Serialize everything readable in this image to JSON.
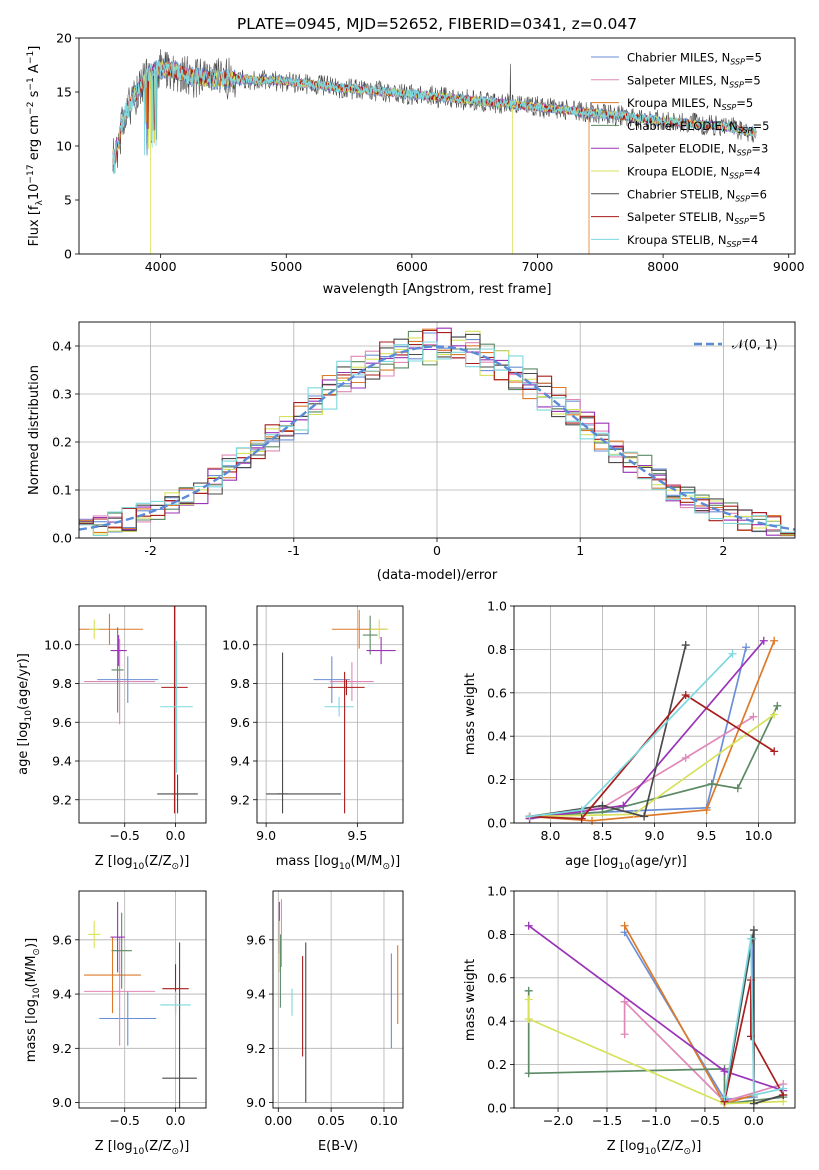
{
  "colors": {
    "c0": "#6a8fd6",
    "c1": "#e088b8",
    "c2": "#dd7a2a",
    "c3": "#5b8a64",
    "c4": "#9a33b8",
    "c5": "#d7e25c",
    "c6": "#4a4a4a",
    "c7": "#a81d1d",
    "c8": "#7cd8de",
    "normal": "#5b8ad6"
  },
  "models": [
    {
      "name": "Chabrier MILES",
      "nssp": "5",
      "key": "c0"
    },
    {
      "name": "Salpeter MILES",
      "nssp": "5",
      "key": "c1"
    },
    {
      "name": "Kroupa MILES",
      "nssp": "5",
      "key": "c2"
    },
    {
      "name": "Chabrier ELODIE",
      "nssp": "5",
      "key": "c3"
    },
    {
      "name": "Salpeter ELODIE",
      "nssp": "3",
      "key": "c4"
    },
    {
      "name": "Kroupa ELODIE",
      "nssp": "4",
      "key": "c5"
    },
    {
      "name": "Chabrier STELIB",
      "nssp": "6",
      "key": "c6"
    },
    {
      "name": "Salpeter STELIB",
      "nssp": "5",
      "key": "c7"
    },
    {
      "name": "Kroupa STELIB",
      "nssp": "4",
      "key": "c8"
    }
  ],
  "chart_data": [
    {
      "id": "spectrum",
      "type": "line",
      "title": "PLATE=0945, MJD=52652, FIBERID=0341, z=0.047",
      "xlabel": "wavelength [Angstrom, rest frame]",
      "ylabel_parts": [
        "Flux [f",
        "λ",
        "10",
        "−17",
        " erg cm",
        "−2",
        " s",
        "−1",
        " A",
        "−1",
        "]"
      ],
      "xlim": [
        3350,
        9050
      ],
      "ylim": [
        0,
        20
      ],
      "xticks": [
        4000,
        5000,
        6000,
        7000,
        8000,
        9000
      ],
      "yticks": [
        0,
        5,
        10,
        15,
        20
      ],
      "legend_position": "top-right",
      "continuum_model": {
        "x": [
          3620,
          3700,
          3800,
          3900,
          4000,
          4100,
          4300,
          4500,
          4800,
          5000,
          5500,
          6000,
          6500,
          7000,
          7500,
          8000,
          8500,
          8750
        ],
        "y": [
          10.5,
          12.5,
          14.8,
          16.5,
          17.2,
          17.0,
          16.3,
          16.2,
          16.1,
          16.0,
          15.3,
          14.8,
          14.2,
          13.6,
          13.0,
          12.3,
          11.8,
          11.2
        ]
      },
      "notable_drops": [
        {
          "series": "Kroupa ELODIE",
          "x": 3920,
          "y": 0
        },
        {
          "series": "Kroupa ELODIE",
          "x": 6800,
          "y": 0
        },
        {
          "series": "Kroupa MILES",
          "x": 7410,
          "y": 0
        }
      ]
    },
    {
      "id": "residuals",
      "type": "step",
      "xlabel": "(data-model)/error",
      "ylabel": "Normed distribution",
      "xlim": [
        -2.5,
        2.5
      ],
      "ylim": [
        0,
        0.45
      ],
      "xticks": [
        -2,
        -1,
        0,
        1,
        2
      ],
      "yticks": [
        0.0,
        0.1,
        0.2,
        0.3,
        0.4
      ],
      "legend": "𝒩(0, 1)",
      "legend_position": "top-right",
      "grid": true,
      "bin_width": 0.1
    },
    {
      "id": "age-vs-Z",
      "type": "errorbar",
      "xlabel_parts": [
        "Z [log",
        "10",
        "(Z/Z",
        "⊙",
        ")]"
      ],
      "ylabel_parts": [
        "age  [log",
        "10",
        "(age/yr)]"
      ],
      "xlim": [
        -0.95,
        0.3
      ],
      "ylim": [
        9.08,
        10.2
      ],
      "xticks": [
        -0.5,
        0.0
      ],
      "yticks": [
        9.2,
        9.4,
        9.6,
        9.8,
        10.0
      ],
      "grid": true,
      "points": [
        {
          "key": "c0",
          "x": -0.47,
          "xerr": 0.3,
          "y": 9.82,
          "yerr": 0.12
        },
        {
          "key": "c1",
          "x": -0.55,
          "xerr": 0.35,
          "y": 9.81,
          "yerr": 0.22
        },
        {
          "key": "c2",
          "x": -0.65,
          "xerr": 0.33,
          "y": 10.08,
          "yerr": 0.08
        },
        {
          "key": "c3",
          "x": -0.57,
          "xerr": 0.06,
          "y": 9.87,
          "yerr": 0.22
        },
        {
          "key": "c4",
          "x": -0.56,
          "xerr": 0.08,
          "y": 9.97,
          "yerr": 0.08
        },
        {
          "key": "c5",
          "x": -0.8,
          "xerr": 0.05,
          "y": 10.08,
          "yerr": 0.05
        },
        {
          "key": "c6",
          "x": 0.02,
          "xerr": 0.2,
          "y": 9.23,
          "yerr": 0.1
        },
        {
          "key": "c7",
          "x": -0.01,
          "xerr": 0.13,
          "y": 9.78,
          "yerr": 0.65
        },
        {
          "key": "c8",
          "x": 0.01,
          "xerr": 0.16,
          "y": 9.68,
          "yerr": 0.34
        }
      ]
    },
    {
      "id": "age-vs-mass",
      "type": "errorbar",
      "xlabel_parts": [
        "mass [log",
        "10",
        "(M/M",
        "⊙",
        ")]"
      ],
      "xlim": [
        8.95,
        9.75
      ],
      "ylim": [
        9.08,
        10.2
      ],
      "xticks": [
        9.0,
        9.5
      ],
      "yticks": [
        9.2,
        9.4,
        9.6,
        9.8,
        10.0
      ],
      "grid": true,
      "points": [
        {
          "key": "c0",
          "x": 9.36,
          "xerr": 0.1,
          "y": 9.82,
          "yerr": 0.12
        },
        {
          "key": "c1",
          "x": 9.47,
          "xerr": 0.12,
          "y": 9.81,
          "yerr": 0.1
        },
        {
          "key": "c2",
          "x": 9.51,
          "xerr": 0.15,
          "y": 10.08,
          "yerr": 0.1
        },
        {
          "key": "c3",
          "x": 9.57,
          "xerr": 0.04,
          "y": 10.05,
          "yerr": 0.1
        },
        {
          "key": "c4",
          "x": 9.63,
          "xerr": 0.08,
          "y": 9.97,
          "yerr": 0.07
        },
        {
          "key": "c5",
          "x": 9.62,
          "xerr": 0.05,
          "y": 10.08,
          "yerr": 0.05
        },
        {
          "key": "c6",
          "x": 9.09,
          "xerr": 0.03,
          "y": 9.23,
          "yerr": 0.0
        },
        {
          "key": "c7",
          "x": 9.44,
          "xerr": 0.1,
          "y": 9.78,
          "yerr": 0.04
        },
        {
          "key": "c8",
          "x": 9.4,
          "xerr": 0.08,
          "y": 9.68,
          "yerr": 0.05
        }
      ],
      "extra_segments": [
        {
          "key": "c6",
          "x1": 9.0,
          "y1": 9.23,
          "x2": 9.41,
          "y2": 9.23
        },
        {
          "key": "c6",
          "x1": 9.09,
          "y1": 9.13,
          "x2": 9.09,
          "y2": 9.96
        },
        {
          "key": "c7",
          "x1": 9.43,
          "y1": 9.13,
          "x2": 9.43,
          "y2": 9.86
        }
      ]
    },
    {
      "id": "weight-vs-age",
      "type": "line",
      "xlabel_parts": [
        "age  [log",
        "10",
        "(age/yr)]"
      ],
      "ylabel": "mass weight",
      "xlim": [
        7.65,
        10.35
      ],
      "ylim": [
        0,
        1
      ],
      "xticks": [
        8.0,
        8.5,
        9.0,
        9.5,
        10.0
      ],
      "yticks": [
        0.0,
        0.2,
        0.4,
        0.6,
        0.8,
        1.0
      ],
      "grid": true,
      "series_by_key": [
        {
          "key": "c0",
          "x": [
            7.8,
            8.5,
            9.5,
            9.88
          ],
          "y": [
            0.03,
            0.05,
            0.07,
            0.81
          ]
        },
        {
          "key": "c1",
          "x": [
            7.8,
            8.5,
            9.3,
            9.95
          ],
          "y": [
            0.02,
            0.07,
            0.3,
            0.49
          ]
        },
        {
          "key": "c2",
          "x": [
            7.8,
            8.4,
            9.5,
            10.15
          ],
          "y": [
            0.03,
            0.01,
            0.06,
            0.84
          ]
        },
        {
          "key": "c3",
          "x": [
            7.8,
            8.5,
            9.55,
            9.8,
            10.18
          ],
          "y": [
            0.03,
            0.05,
            0.18,
            0.16,
            0.54
          ]
        },
        {
          "key": "c4",
          "x": [
            7.8,
            8.7,
            10.05
          ],
          "y": [
            0.02,
            0.08,
            0.84
          ]
        },
        {
          "key": "c5",
          "x": [
            7.8,
            8.8,
            10.15
          ],
          "y": [
            0.03,
            0.04,
            0.5
          ]
        },
        {
          "key": "c6",
          "x": [
            7.8,
            8.5,
            8.9,
            9.3
          ],
          "y": [
            0.03,
            0.08,
            0.03,
            0.82
          ]
        },
        {
          "key": "c7",
          "x": [
            7.8,
            8.3,
            9.3,
            10.15
          ],
          "y": [
            0.03,
            0.02,
            0.59,
            0.33
          ]
        },
        {
          "key": "c8",
          "x": [
            7.8,
            8.3,
            9.75
          ],
          "y": [
            0.03,
            0.06,
            0.78
          ]
        }
      ]
    },
    {
      "id": "mass-vs-Z",
      "type": "errorbar",
      "xlabel_parts": [
        "Z [log",
        "10",
        "(Z/Z",
        "⊙",
        ")]"
      ],
      "ylabel_parts": [
        "mass [log",
        "10",
        "(M/M",
        "⊙",
        ")]"
      ],
      "xlim": [
        -0.95,
        0.3
      ],
      "ylim": [
        8.98,
        9.78
      ],
      "xticks": [
        -0.5,
        0.0
      ],
      "yticks": [
        9.0,
        9.2,
        9.4,
        9.6
      ],
      "grid": true,
      "points": [
        {
          "key": "c0",
          "x": -0.47,
          "xerr": 0.28,
          "y": 9.31,
          "yerr": 0.1
        },
        {
          "key": "c1",
          "x": -0.55,
          "xerr": 0.35,
          "y": 9.41,
          "yerr": 0.2
        },
        {
          "key": "c2",
          "x": -0.62,
          "xerr": 0.28,
          "y": 9.47,
          "yerr": 0.14
        },
        {
          "key": "c3",
          "x": -0.53,
          "xerr": 0.1,
          "y": 9.56,
          "yerr": 0.14
        },
        {
          "key": "c4",
          "x": -0.57,
          "xerr": 0.07,
          "y": 9.61,
          "yerr": 0.13
        },
        {
          "key": "c5",
          "x": -0.8,
          "xerr": 0.06,
          "y": 9.62,
          "yerr": 0.05
        },
        {
          "key": "c6",
          "x": 0.04,
          "xerr": 0.17,
          "y": 9.09,
          "yerr": 0.5
        },
        {
          "key": "c7",
          "x": 0.0,
          "xerr": 0.13,
          "y": 9.42,
          "yerr": 0.09
        },
        {
          "key": "c8",
          "x": 0.0,
          "xerr": 0.15,
          "y": 9.36,
          "yerr": 0.05
        }
      ]
    },
    {
      "id": "mass-vs-EBV",
      "type": "errorbar",
      "xlabel": "E(B-V)",
      "xlim": [
        -0.005,
        0.118
      ],
      "ylim": [
        8.98,
        9.78
      ],
      "xticks": [
        0.0,
        0.05,
        0.1
      ],
      "xtick_labels": [
        "0.00",
        "0.05",
        "0.10"
      ],
      "yticks": [
        9.0,
        9.2,
        9.4,
        9.6
      ],
      "grid": true,
      "vertical_bars": [
        {
          "key": "c0",
          "x": 0.107,
          "y1": 9.2,
          "y2": 9.55
        },
        {
          "key": "c1",
          "x": 0.003,
          "y1": 9.5,
          "y2": 9.75
        },
        {
          "key": "c2",
          "x": 0.113,
          "y1": 9.29,
          "y2": 9.58
        },
        {
          "key": "c3",
          "x": 0.002,
          "y1": 9.35,
          "y2": 9.62
        },
        {
          "key": "c4",
          "x": 0.001,
          "y1": 9.55,
          "y2": 9.74
        },
        {
          "key": "c5",
          "x": 0.001,
          "y1": 9.48,
          "y2": 9.67
        },
        {
          "key": "c6",
          "x": 0.026,
          "y1": 9.0,
          "y2": 9.59
        },
        {
          "key": "c7",
          "x": 0.023,
          "y1": 9.17,
          "y2": 9.54
        },
        {
          "key": "c8",
          "x": 0.013,
          "y1": 9.32,
          "y2": 9.42
        }
      ]
    },
    {
      "id": "weight-vs-Z",
      "type": "line",
      "xlabel_parts": [
        "Z [log",
        "10",
        "(Z/Z",
        "⊙",
        ")]"
      ],
      "ylabel": "mass weight",
      "xlim": [
        -2.45,
        0.42
      ],
      "ylim": [
        0,
        1
      ],
      "xticks": [
        -2.0,
        -1.5,
        -1.0,
        -0.5,
        0.0
      ],
      "xtick_labels": [
        "−2.0",
        "−1.5",
        "−1.0",
        "−0.5",
        "0.0"
      ],
      "yticks": [
        0.0,
        0.2,
        0.4,
        0.6,
        0.8,
        1.0
      ],
      "grid": true,
      "series_by_key": [
        {
          "key": "c0",
          "x": [
            -1.32,
            -0.3,
            0.0,
            -0.02
          ],
          "y": [
            0.81,
            0.04,
            0.05,
            0.78
          ]
        },
        {
          "key": "c1",
          "x": [
            -1.32,
            -1.32,
            -0.3,
            0.3
          ],
          "y": [
            0.34,
            0.49,
            0.03,
            0.11
          ]
        },
        {
          "key": "c2",
          "x": [
            -1.32,
            -0.3,
            0.0
          ],
          "y": [
            0.84,
            0.02,
            0.06
          ]
        },
        {
          "key": "c3",
          "x": [
            -2.3,
            -2.3,
            -0.3,
            -0.3,
            0.3
          ],
          "y": [
            0.54,
            0.16,
            0.18,
            0.02,
            0.05
          ]
        },
        {
          "key": "c4",
          "x": [
            -2.3,
            -0.3,
            0.3
          ],
          "y": [
            0.84,
            0.17,
            0.08
          ]
        },
        {
          "key": "c5",
          "x": [
            -2.3,
            -2.3,
            -0.3,
            0.3
          ],
          "y": [
            0.5,
            0.41,
            0.02,
            0.03
          ]
        },
        {
          "key": "c6",
          "x": [
            -0.3,
            0.0,
            0.0,
            0.3
          ],
          "y": [
            0.03,
            0.82,
            0.02,
            0.06
          ]
        },
        {
          "key": "c7",
          "x": [
            -0.3,
            -0.03,
            -0.03,
            0.3
          ],
          "y": [
            0.03,
            0.59,
            0.33,
            0.06
          ]
        },
        {
          "key": "c8",
          "x": [
            -0.3,
            -0.03,
            0.0,
            0.3
          ],
          "y": [
            0.05,
            0.78,
            0.06,
            0.09
          ]
        }
      ]
    }
  ]
}
